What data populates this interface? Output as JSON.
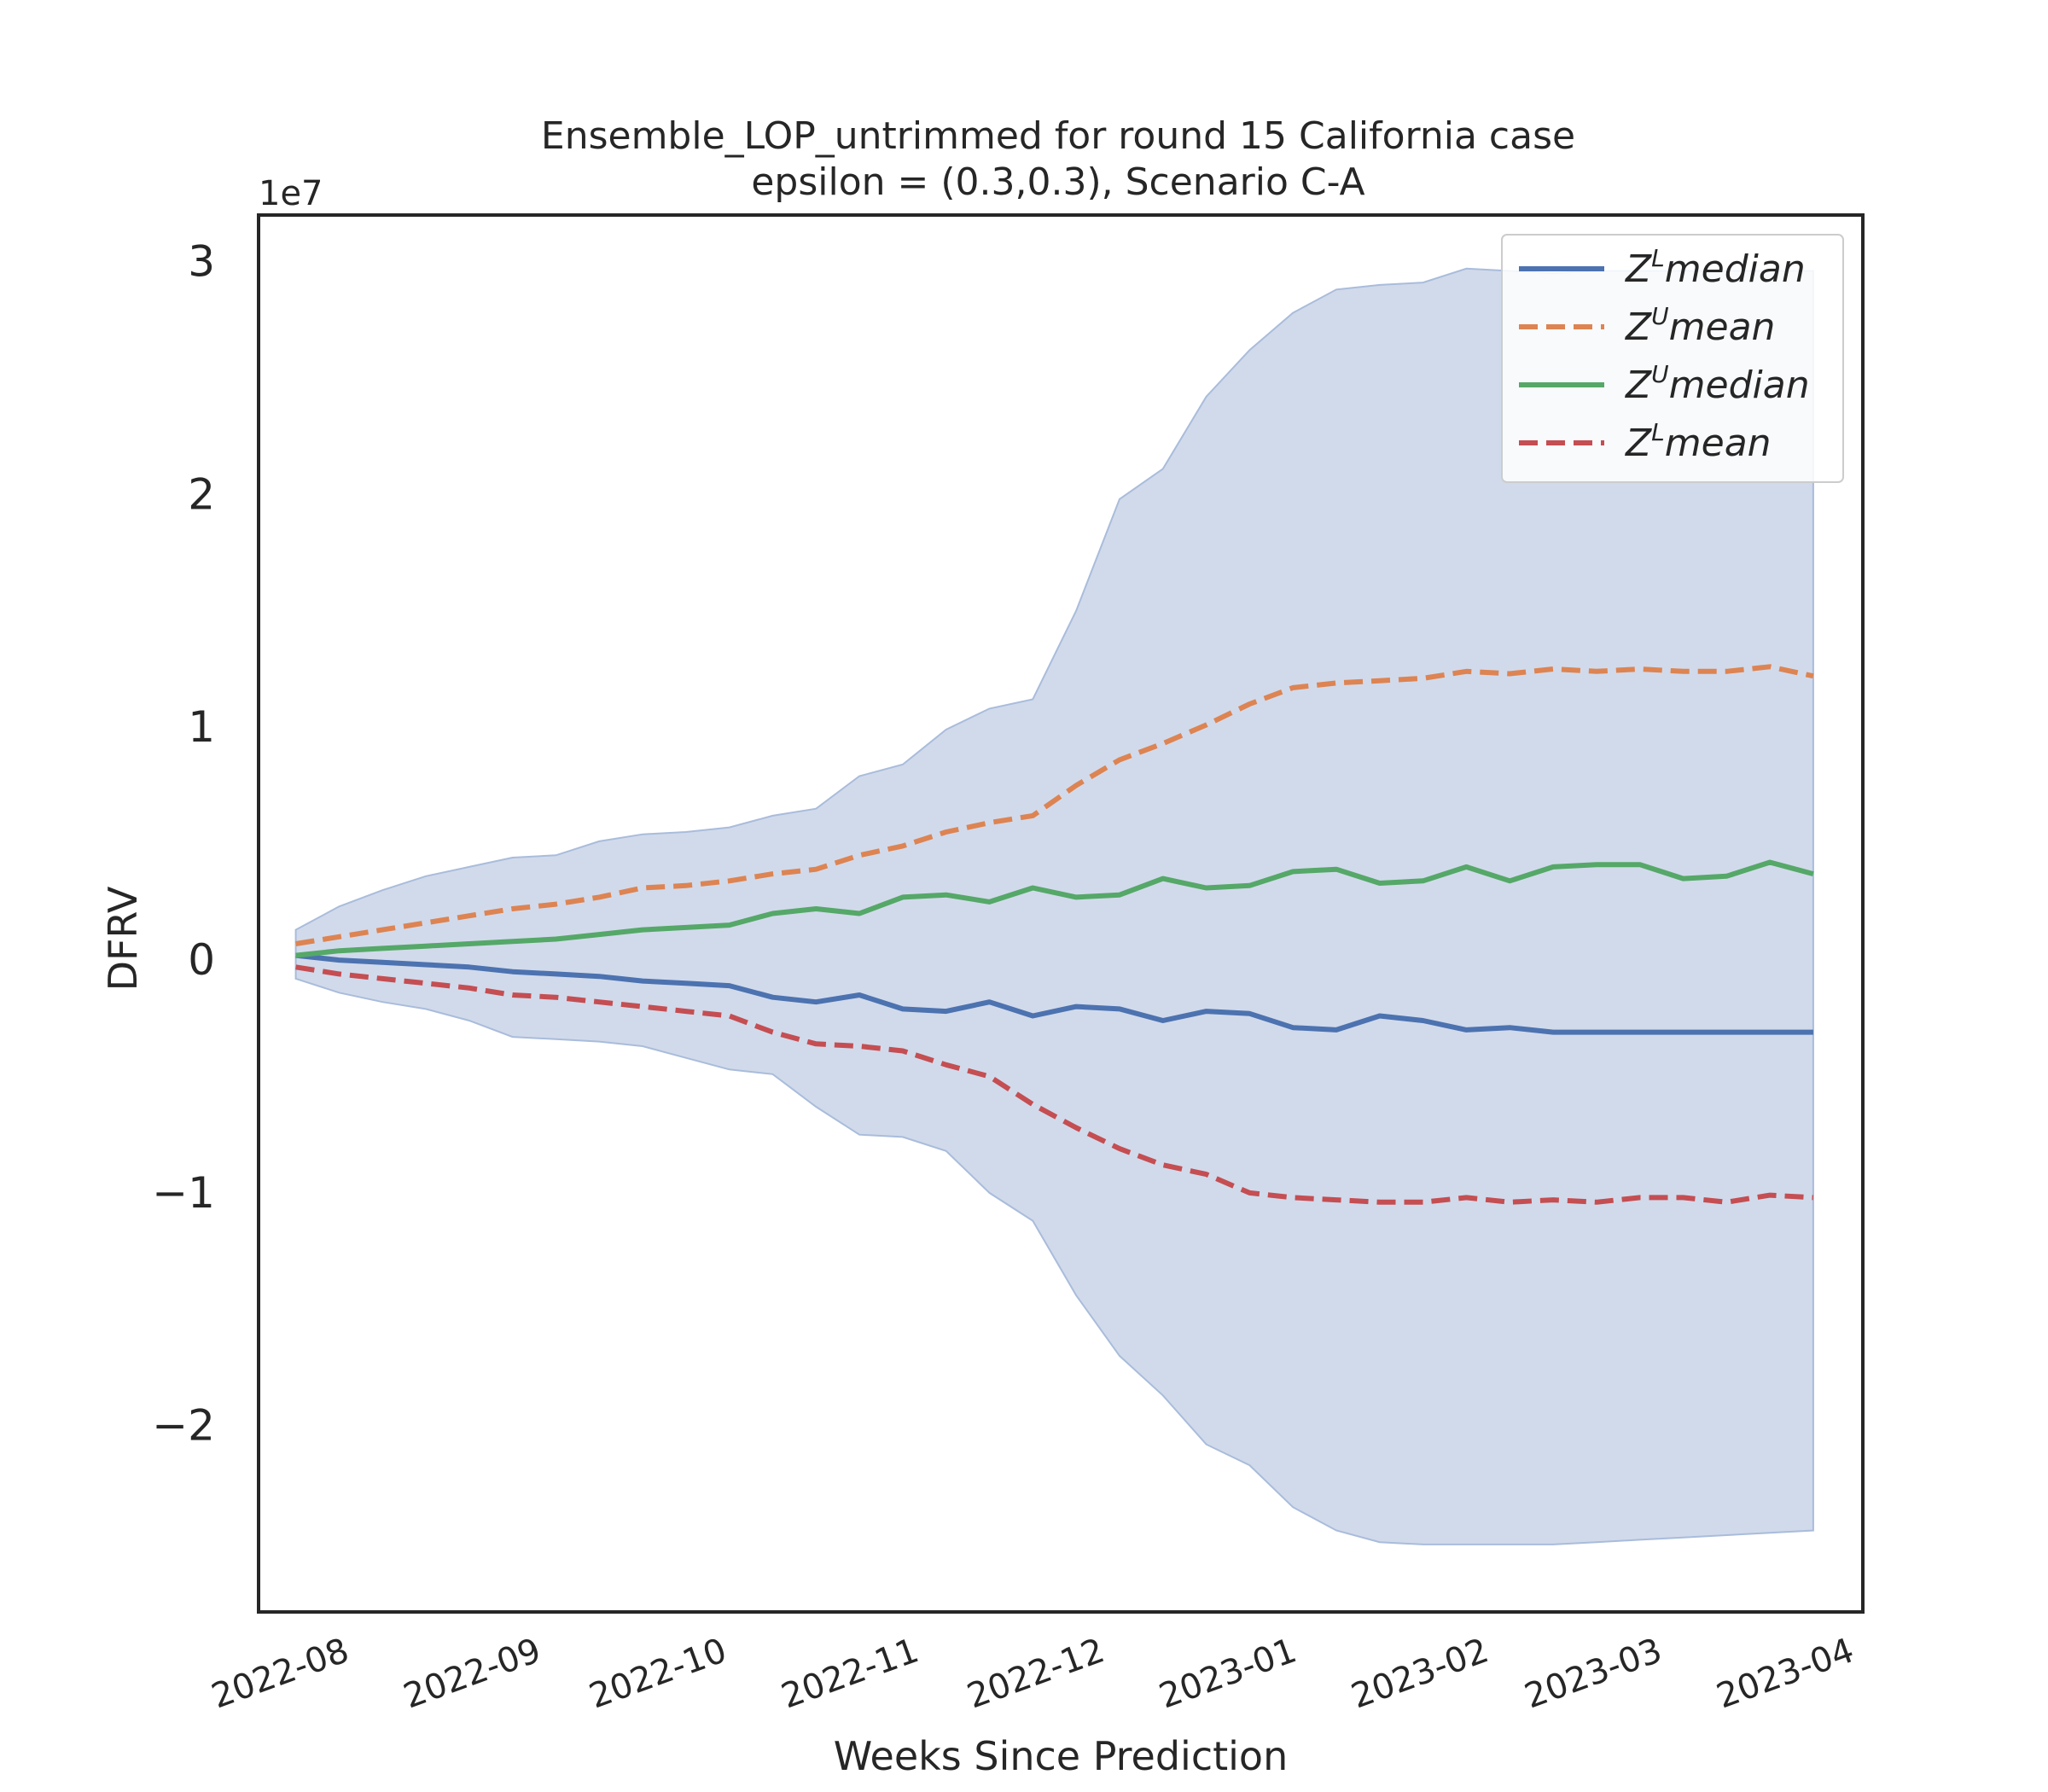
{
  "chart_data": {
    "type": "line",
    "title_lines": [
      "Ensemble_LOP_untrimmed for round 15 California  case",
      "epsilon = (0.3,0.3), Scenario C-A"
    ],
    "xlabel": "Weeks Since Prediction",
    "ylabel": "DFRV",
    "y_offset_label": "1e7",
    "y_scale": 10000000,
    "ylim": [
      -2.8,
      3.2
    ],
    "y_ticks": [
      3,
      2,
      1,
      0,
      -1,
      -2
    ],
    "y_tick_labels": [
      "3",
      "2",
      "1",
      "0",
      "−1",
      "−2"
    ],
    "x_tick_dates": [
      "2022-08-01",
      "2022-09-01",
      "2022-10-01",
      "2022-11-01",
      "2022-12-01",
      "2023-01-01",
      "2023-02-01",
      "2023-03-01",
      "2023-04-01"
    ],
    "x_tick_labels": [
      "2022-08",
      "2022-09",
      "2022-10",
      "2022-11",
      "2022-12",
      "2023-01",
      "2023-02",
      "2023-03",
      "2023-04"
    ],
    "xlim": [
      "2022-07-19",
      "2023-04-04"
    ],
    "grid": false,
    "legend_position": "upper right",
    "x": [
      "2022-07-25",
      "2022-08-01",
      "2022-08-08",
      "2022-08-15",
      "2022-08-22",
      "2022-08-29",
      "2022-09-05",
      "2022-09-12",
      "2022-09-19",
      "2022-09-26",
      "2022-10-03",
      "2022-10-10",
      "2022-10-17",
      "2022-10-24",
      "2022-10-31",
      "2022-11-07",
      "2022-11-14",
      "2022-11-21",
      "2022-11-28",
      "2022-12-05",
      "2022-12-12",
      "2022-12-19",
      "2022-12-26",
      "2023-01-02",
      "2023-01-09",
      "2023-01-16",
      "2023-01-23",
      "2023-01-30",
      "2023-02-06",
      "2023-02-13",
      "2023-02-20",
      "2023-02-27",
      "2023-03-06",
      "2023-03-13",
      "2023-03-20",
      "2023-03-27"
    ],
    "band": {
      "color": "#c9d4e8",
      "edge_color": "#a9bcdb",
      "upper": [
        0.13,
        0.23,
        0.3,
        0.36,
        0.4,
        0.44,
        0.45,
        0.51,
        0.54,
        0.55,
        0.57,
        0.62,
        0.65,
        0.79,
        0.84,
        0.99,
        1.08,
        1.12,
        1.5,
        1.98,
        2.11,
        2.42,
        2.62,
        2.78,
        2.88,
        2.9,
        2.91,
        2.97,
        2.96,
        2.95,
        2.96,
        2.96,
        2.96,
        2.96,
        2.96,
        2.96
      ],
      "lower": [
        -0.08,
        -0.14,
        -0.18,
        -0.21,
        -0.26,
        -0.33,
        -0.34,
        -0.35,
        -0.37,
        -0.42,
        -0.47,
        -0.49,
        -0.63,
        -0.75,
        -0.76,
        -0.82,
        -1.0,
        -1.12,
        -1.44,
        -1.7,
        -1.87,
        -2.08,
        -2.17,
        -2.35,
        -2.45,
        -2.5,
        -2.51,
        -2.51,
        -2.51,
        -2.51,
        -2.5,
        -2.49,
        -2.48,
        -2.47,
        -2.46,
        -2.45
      ]
    },
    "series": [
      {
        "name": "Z^L median",
        "name_base": "Z",
        "name_sup": "L",
        "name_text": "median",
        "color": "#4c72b0",
        "dash": "solid",
        "values": [
          0.02,
          0.0,
          -0.01,
          -0.02,
          -0.03,
          -0.05,
          -0.06,
          -0.07,
          -0.09,
          -0.1,
          -0.11,
          -0.16,
          -0.18,
          -0.15,
          -0.21,
          -0.22,
          -0.18,
          -0.24,
          -0.2,
          -0.21,
          -0.26,
          -0.22,
          -0.23,
          -0.29,
          -0.3,
          -0.24,
          -0.26,
          -0.3,
          -0.29,
          -0.31,
          -0.31,
          -0.31,
          -0.31,
          -0.31,
          -0.31,
          -0.31
        ]
      },
      {
        "name": "Z^U mean",
        "name_base": "Z",
        "name_sup": "U",
        "name_text": "mean",
        "color": "#dd8452",
        "dash": "dashed",
        "values": [
          0.07,
          0.1,
          0.13,
          0.16,
          0.19,
          0.22,
          0.24,
          0.27,
          0.31,
          0.32,
          0.34,
          0.37,
          0.39,
          0.45,
          0.49,
          0.55,
          0.59,
          0.62,
          0.75,
          0.86,
          0.93,
          1.01,
          1.1,
          1.17,
          1.19,
          1.2,
          1.21,
          1.24,
          1.23,
          1.25,
          1.24,
          1.25,
          1.24,
          1.24,
          1.26,
          1.22
        ]
      },
      {
        "name": "Z^U median",
        "name_base": "Z",
        "name_sup": "U",
        "name_text": "median",
        "color": "#55a868",
        "dash": "solid",
        "values": [
          0.02,
          0.04,
          0.05,
          0.06,
          0.07,
          0.08,
          0.09,
          0.11,
          0.13,
          0.14,
          0.15,
          0.2,
          0.22,
          0.2,
          0.27,
          0.28,
          0.25,
          0.31,
          0.27,
          0.28,
          0.35,
          0.31,
          0.32,
          0.38,
          0.39,
          0.33,
          0.34,
          0.4,
          0.34,
          0.4,
          0.41,
          0.41,
          0.35,
          0.36,
          0.42,
          0.37
        ]
      },
      {
        "name": "Z^L mean",
        "name_base": "Z",
        "name_sup": "L",
        "name_text": "mean",
        "color": "#c44e52",
        "dash": "dashed",
        "values": [
          -0.03,
          -0.06,
          -0.08,
          -0.1,
          -0.12,
          -0.15,
          -0.16,
          -0.18,
          -0.2,
          -0.22,
          -0.24,
          -0.31,
          -0.36,
          -0.37,
          -0.39,
          -0.45,
          -0.5,
          -0.62,
          -0.72,
          -0.81,
          -0.88,
          -0.92,
          -1.0,
          -1.02,
          -1.03,
          -1.04,
          -1.04,
          -1.02,
          -1.04,
          -1.03,
          -1.04,
          -1.02,
          -1.02,
          -1.04,
          -1.01,
          -1.02
        ]
      }
    ]
  }
}
